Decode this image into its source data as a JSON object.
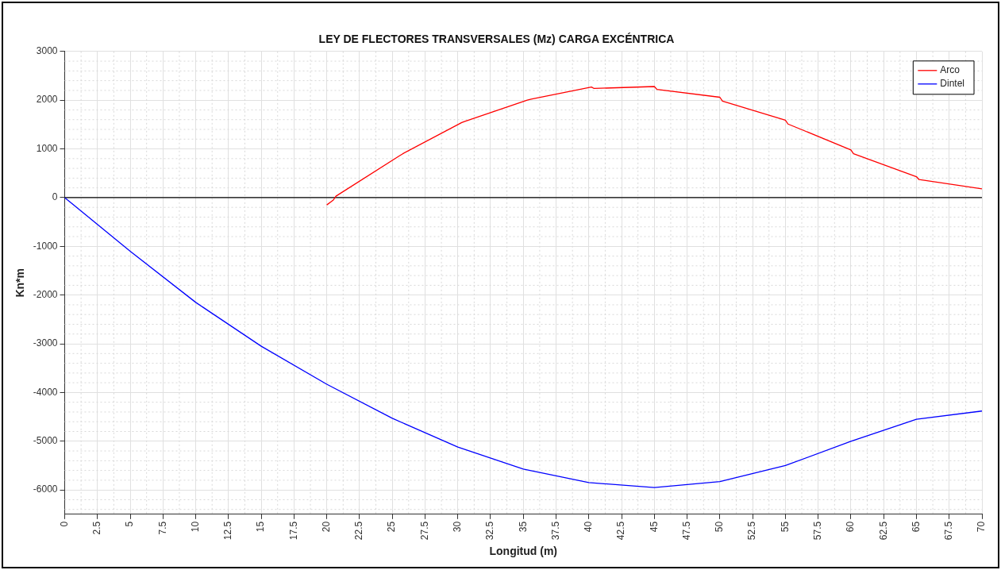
{
  "chart_data": {
    "type": "line",
    "title": "LEY DE FLECTORES TRANSVERSALES (Mz) CARGA EXCÉNTRICA",
    "xlabel": "Longitud (m)",
    "ylabel": "Kn*m",
    "xlim": [
      0,
      70
    ],
    "xticks": [
      0,
      2.5,
      5,
      7.5,
      10,
      12.5,
      15,
      17.5,
      20,
      22.5,
      25,
      27.5,
      30,
      32.5,
      35,
      37.5,
      40,
      42.5,
      45,
      47.5,
      50,
      52.5,
      55,
      57.5,
      60,
      62.5,
      65,
      67.5,
      70
    ],
    "ylim": [
      -6500,
      3000
    ],
    "yticks": [
      -6000,
      -5000,
      -4000,
      -3000,
      -2000,
      -1000,
      0,
      1000,
      2000,
      3000
    ],
    "grid": true,
    "legend": "top right",
    "marker": "none",
    "line_style": "solid",
    "ref_lines": [
      {
        "axis": "y",
        "value": 0,
        "color": "#000000"
      }
    ],
    "series": [
      {
        "name": "Arco",
        "color": "#ff0000",
        "x": [
          20,
          20.5,
          20.7,
          25.5,
          25.8,
          30.3,
          30.5,
          35.3,
          35.6,
          40.2,
          40.4,
          45,
          45.2,
          50,
          50.2,
          55,
          55.2,
          60,
          60.2,
          65,
          65.2,
          70
        ],
        "values": [
          -150,
          -50,
          30,
          850,
          900,
          1540,
          1560,
          2000,
          2020,
          2270,
          2240,
          2280,
          2220,
          2060,
          1980,
          1590,
          1510,
          980,
          900,
          430,
          370,
          180
        ]
      },
      {
        "name": "Dintel",
        "color": "#0000ff",
        "x": [
          0,
          5,
          10,
          15,
          20,
          25,
          30,
          35,
          40,
          45,
          50,
          55,
          60,
          65,
          70
        ],
        "values": [
          0,
          -1100,
          -2150,
          -3050,
          -3830,
          -4530,
          -5120,
          -5570,
          -5850,
          -5950,
          -5830,
          -5500,
          -5000,
          -4550,
          -4380
        ]
      }
    ]
  }
}
